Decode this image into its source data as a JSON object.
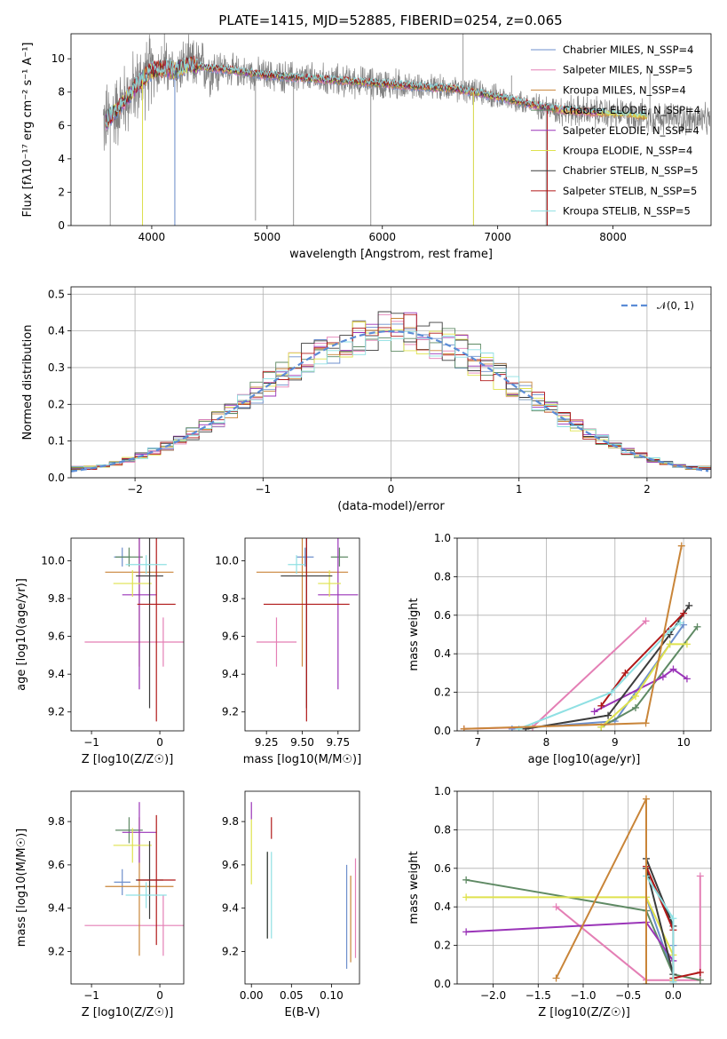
{
  "chart_data": [
    {
      "type": "line",
      "title": "PLATE=1415, MJD=52885, FIBERID=0254, z=0.065",
      "xlabel": "wavelength [Angstrom, rest frame]",
      "ylabel": "Flux [fλ10⁻¹⁷ erg cm⁻² s⁻¹ A⁻¹]",
      "xlim": [
        3300,
        8850
      ],
      "ylim": [
        0,
        11.5
      ],
      "xticks": [
        4000,
        5000,
        6000,
        7000,
        8000
      ],
      "yticks": [
        0,
        2,
        4,
        6,
        8,
        10
      ],
      "legend_position": "upper right",
      "data_series": {
        "name": "",
        "color": "#808080",
        "x": [
          3600,
          3700,
          3800,
          3900,
          4000,
          4100,
          4200,
          4300,
          4400,
          4500,
          4600,
          4800,
          5000,
          5200,
          5400,
          5600,
          5800,
          6000,
          6200,
          6400,
          6600,
          6800,
          7000,
          7200,
          7400,
          7600,
          7800,
          8000,
          8200,
          8400,
          8600,
          8800
        ],
        "y": [
          6.2,
          7.0,
          7.8,
          8.6,
          9.3,
          9.4,
          9.3,
          9.6,
          9.6,
          9.4,
          9.4,
          9.2,
          9.0,
          8.9,
          8.8,
          8.7,
          8.6,
          8.5,
          8.4,
          8.3,
          8.2,
          8.0,
          7.7,
          7.4,
          7.1,
          6.9,
          6.8,
          6.7,
          6.6,
          6.5,
          6.4,
          6.3
        ]
      },
      "series": [
        {
          "name": "Chabrier MILES, N_SSP=4",
          "color": "#6d8fcc"
        },
        {
          "name": "Salpeter MILES, N_SSP=5",
          "color": "#e47fb5"
        },
        {
          "name": "Kroupa MILES, N_SSP=4",
          "color": "#c98539"
        },
        {
          "name": "Chabrier ELODIE, N_SSP=4",
          "color": "#5f8a64"
        },
        {
          "name": "Salpeter ELODIE, N_SSP=4",
          "color": "#9a34b8"
        },
        {
          "name": "Kroupa ELODIE, N_SSP=4",
          "color": "#dfe24d"
        },
        {
          "name": "Chabrier STELIB, N_SSP=5",
          "color": "#3c3c3c"
        },
        {
          "name": "Salpeter STELIB, N_SSP=5",
          "color": "#b01818"
        },
        {
          "name": "Kroupa STELIB, N_SSP=5",
          "color": "#8fe0e3"
        }
      ]
    },
    {
      "type": "histogram",
      "xlabel": "(data-model)/error",
      "ylabel": "Normed distribution",
      "xlim": [
        -2.5,
        2.5
      ],
      "ylim": [
        0,
        0.52
      ],
      "xticks": [
        -2,
        -1,
        0,
        1,
        2
      ],
      "yticks": [
        0.0,
        0.1,
        0.2,
        0.3,
        0.4,
        0.5
      ],
      "grid": true,
      "legend": [
        {
          "name": "𝒩(0, 1)",
          "color": "#5b8cd6",
          "style": "dashed"
        }
      ],
      "legend_position": "upper right",
      "bin_width": 0.1
    },
    {
      "type": "errorbar",
      "xlabel": "Z [log10(Z/Z☉)]",
      "ylabel": "age  [log10(age/yr)]",
      "xlim": [
        -1.3,
        0.35
      ],
      "ylim": [
        9.1,
        10.12
      ],
      "xticks": [
        -1,
        0
      ],
      "yticks": [
        9.2,
        9.4,
        9.6,
        9.8,
        10.0
      ],
      "points": [
        {
          "x": -0.55,
          "y": 10.02,
          "xerr": 0.12,
          "yerr": 0.05,
          "color": "#6d8fcc"
        },
        {
          "x": 0.05,
          "y": 9.57,
          "xerr": 1.15,
          "yerr": 0.13,
          "color": "#e47fb5"
        },
        {
          "x": -0.3,
          "y": 9.94,
          "xerr": 0.5,
          "yerr": 0.5,
          "color": "#c98539"
        },
        {
          "x": -0.45,
          "y": 10.02,
          "xerr": 0.2,
          "yerr": 0.05,
          "color": "#5f8a64"
        },
        {
          "x": -0.3,
          "y": 9.82,
          "xerr": 0.25,
          "yerr": 0.5,
          "color": "#9a34b8"
        },
        {
          "x": -0.4,
          "y": 9.88,
          "xerr": 0.28,
          "yerr": 0.07,
          "color": "#dfe24d"
        },
        {
          "x": -0.15,
          "y": 9.92,
          "xerr": 0.2,
          "yerr": 0.7,
          "color": "#3c3c3c"
        },
        {
          "x": -0.05,
          "y": 9.77,
          "xerr": 0.28,
          "yerr": 0.62,
          "color": "#b01818"
        },
        {
          "x": -0.2,
          "y": 9.98,
          "xerr": 0.3,
          "yerr": 0.05,
          "color": "#8fe0e3"
        }
      ]
    },
    {
      "type": "errorbar",
      "xlabel": "mass [log10(M/M☉)]",
      "ylabel": "",
      "xlim": [
        9.1,
        9.9
      ],
      "ylim": [
        9.1,
        10.12
      ],
      "xticks": [
        9.25,
        9.5,
        9.75
      ],
      "yticks": [
        9.2,
        9.4,
        9.6,
        9.8,
        10.0
      ],
      "points": [
        {
          "x": 9.52,
          "y": 10.02,
          "xerr": 0.06,
          "yerr": 0.05,
          "color": "#6d8fcc"
        },
        {
          "x": 9.32,
          "y": 9.57,
          "xerr": 0.14,
          "yerr": 0.13,
          "color": "#e47fb5"
        },
        {
          "x": 9.5,
          "y": 9.94,
          "xerr": 0.32,
          "yerr": 0.5,
          "color": "#c98539"
        },
        {
          "x": 9.76,
          "y": 10.02,
          "xerr": 0.06,
          "yerr": 0.05,
          "color": "#5f8a64"
        },
        {
          "x": 9.75,
          "y": 9.82,
          "xerr": 0.14,
          "yerr": 0.5,
          "color": "#9a34b8"
        },
        {
          "x": 9.69,
          "y": 9.88,
          "xerr": 0.08,
          "yerr": 0.07,
          "color": "#dfe24d"
        },
        {
          "x": 9.53,
          "y": 9.92,
          "xerr": 0.18,
          "yerr": 0.7,
          "color": "#3c3c3c"
        },
        {
          "x": 9.53,
          "y": 9.77,
          "xerr": 0.3,
          "yerr": 0.62,
          "color": "#b01818"
        },
        {
          "x": 9.46,
          "y": 9.98,
          "xerr": 0.06,
          "yerr": 0.05,
          "color": "#8fe0e3"
        }
      ]
    },
    {
      "type": "line",
      "xlabel": "age  [log10(age/yr)]",
      "ylabel": "mass weight",
      "xlim": [
        6.7,
        10.4
      ],
      "ylim": [
        0,
        1.0
      ],
      "xticks": [
        7,
        8,
        9,
        10
      ],
      "yticks": [
        0.0,
        0.2,
        0.4,
        0.6,
        0.8,
        1.0
      ],
      "grid": true,
      "series": [
        {
          "color": "#6d8fcc",
          "x": [
            7.5,
            9.0,
            9.8,
            10.0
          ],
          "y": [
            0.01,
            0.05,
            0.45,
            0.55
          ]
        },
        {
          "color": "#e47fb5",
          "x": [
            6.8,
            7.8,
            9.45
          ],
          "y": [
            0.01,
            0.02,
            0.57
          ]
        },
        {
          "color": "#5f8a64",
          "x": [
            8.8,
            9.3,
            10.2
          ],
          "y": [
            0.02,
            0.12,
            0.54
          ]
        },
        {
          "color": "#9a34b8",
          "x": [
            8.7,
            9.7,
            9.85,
            10.05
          ],
          "y": [
            0.1,
            0.28,
            0.32,
            0.27
          ]
        },
        {
          "color": "#dfe24d",
          "x": [
            8.8,
            9.3,
            9.8,
            10.05
          ],
          "y": [
            0.02,
            0.18,
            0.45,
            0.45
          ]
        },
        {
          "color": "#3c3c3c",
          "x": [
            7.7,
            8.9,
            9.8,
            10.08
          ],
          "y": [
            0.01,
            0.08,
            0.5,
            0.65
          ]
        },
        {
          "color": "#b01818",
          "x": [
            8.8,
            9.15,
            10.0
          ],
          "y": [
            0.13,
            0.3,
            0.61
          ]
        },
        {
          "color": "#8fe0e3",
          "x": [
            7.6,
            8.95,
            9.8,
            9.95
          ],
          "y": [
            0.01,
            0.2,
            0.52,
            0.56
          ]
        },
        {
          "color": "#c98539",
          "x": [
            6.8,
            9.45,
            9.97
          ],
          "y": [
            0.01,
            0.04,
            0.96
          ]
        }
      ]
    },
    {
      "type": "errorbar",
      "xlabel": "Z [log10(Z/Z☉)]",
      "ylabel": "mass [log10(M/M☉)]",
      "xlim": [
        -1.3,
        0.35
      ],
      "ylim": [
        9.05,
        9.94
      ],
      "xticks": [
        -1,
        0
      ],
      "yticks": [
        9.2,
        9.4,
        9.6,
        9.8
      ],
      "points": [
        {
          "x": -0.55,
          "y": 9.52,
          "xerr": 0.12,
          "yerr": 0.06,
          "color": "#6d8fcc"
        },
        {
          "x": 0.05,
          "y": 9.32,
          "xerr": 1.15,
          "yerr": 0.14,
          "color": "#e47fb5"
        },
        {
          "x": -0.3,
          "y": 9.5,
          "xerr": 0.5,
          "yerr": 0.32,
          "color": "#c98539"
        },
        {
          "x": -0.45,
          "y": 9.76,
          "xerr": 0.2,
          "yerr": 0.06,
          "color": "#5f8a64"
        },
        {
          "x": -0.3,
          "y": 9.75,
          "xerr": 0.25,
          "yerr": 0.14,
          "color": "#9a34b8"
        },
        {
          "x": -0.4,
          "y": 9.69,
          "xerr": 0.28,
          "yerr": 0.08,
          "color": "#dfe24d"
        },
        {
          "x": -0.15,
          "y": 9.53,
          "xerr": 0.2,
          "yerr": 0.18,
          "color": "#3c3c3c"
        },
        {
          "x": -0.05,
          "y": 9.53,
          "xerr": 0.28,
          "yerr": 0.3,
          "color": "#b01818"
        },
        {
          "x": -0.2,
          "y": 9.46,
          "xerr": 0.3,
          "yerr": 0.06,
          "color": "#8fe0e3"
        }
      ]
    },
    {
      "type": "errorbar",
      "xlabel": "E(B-V)",
      "ylabel": "",
      "xlim": [
        -0.008,
        0.135
      ],
      "ylim": [
        9.05,
        9.94
      ],
      "xticks": [
        0.0,
        0.05,
        0.1
      ],
      "yticks": [
        9.2,
        9.4,
        9.6,
        9.8
      ],
      "points": [
        {
          "x": 0.119,
          "y": 9.36,
          "yerr": 0.24,
          "color": "#6d8fcc"
        },
        {
          "x": 0.13,
          "y": 9.4,
          "yerr": 0.23,
          "color": "#e47fb5"
        },
        {
          "x": 0.124,
          "y": 9.35,
          "yerr": 0.2,
          "color": "#c98539"
        },
        {
          "x": 0.02,
          "y": 9.46,
          "yerr": 0.2,
          "color": "#5f8a64"
        },
        {
          "x": 0.0,
          "y": 9.85,
          "yerr": 0.04,
          "color": "#9a34b8"
        },
        {
          "x": 0.0,
          "y": 9.66,
          "yerr": 0.15,
          "color": "#dfe24d"
        },
        {
          "x": 0.02,
          "y": 9.46,
          "yerr": 0.2,
          "color": "#3c3c3c"
        },
        {
          "x": 0.025,
          "y": 9.77,
          "yerr": 0.05,
          "color": "#b01818"
        },
        {
          "x": 0.025,
          "y": 9.46,
          "yerr": 0.2,
          "color": "#8fe0e3"
        }
      ]
    },
    {
      "type": "line",
      "xlabel": "Z [log10(Z/Z☉)]",
      "ylabel": "mass weight",
      "xlim": [
        -2.4,
        0.42
      ],
      "ylim": [
        0,
        1.0
      ],
      "xticks": [
        -2.0,
        -1.5,
        -1.0,
        -0.5,
        0.0
      ],
      "yticks": [
        0.0,
        0.2,
        0.4,
        0.6,
        0.8,
        1.0
      ],
      "grid": true,
      "series": [
        {
          "color": "#6d8fcc",
          "x": [
            -0.3,
            0.0,
            0.0
          ],
          "y": [
            0.45,
            0.05,
            0.2
          ]
        },
        {
          "color": "#e47fb5",
          "x": [
            -1.3,
            -0.3,
            0.3,
            0.3
          ],
          "y": [
            0.4,
            0.02,
            0.02,
            0.56
          ]
        },
        {
          "color": "#5f8a64",
          "x": [
            -2.3,
            -0.3,
            0.0,
            0.3
          ],
          "y": [
            0.54,
            0.38,
            0.05,
            0.02
          ]
        },
        {
          "color": "#9a34b8",
          "x": [
            -2.3,
            -0.3,
            0.0
          ],
          "y": [
            0.27,
            0.32,
            0.12
          ]
        },
        {
          "color": "#dfe24d",
          "x": [
            -2.3,
            -0.3,
            0.0,
            0.0
          ],
          "y": [
            0.45,
            0.45,
            0.15,
            0.02
          ]
        },
        {
          "color": "#3c3c3c",
          "x": [
            -0.3,
            0.0,
            -0.3,
            0.0
          ],
          "y": [
            0.65,
            0.3,
            0.6,
            0.05
          ]
        },
        {
          "color": "#b01818",
          "x": [
            -0.3,
            0.0,
            0.0,
            0.3
          ],
          "y": [
            0.61,
            0.28,
            0.03,
            0.06
          ]
        },
        {
          "color": "#8fe0e3",
          "x": [
            -0.3,
            0.0,
            0.0
          ],
          "y": [
            0.56,
            0.34,
            0.01
          ]
        },
        {
          "color": "#c98539",
          "x": [
            -1.3,
            -0.3,
            -0.3
          ],
          "y": [
            0.03,
            0.96,
            0.0
          ]
        }
      ]
    }
  ]
}
